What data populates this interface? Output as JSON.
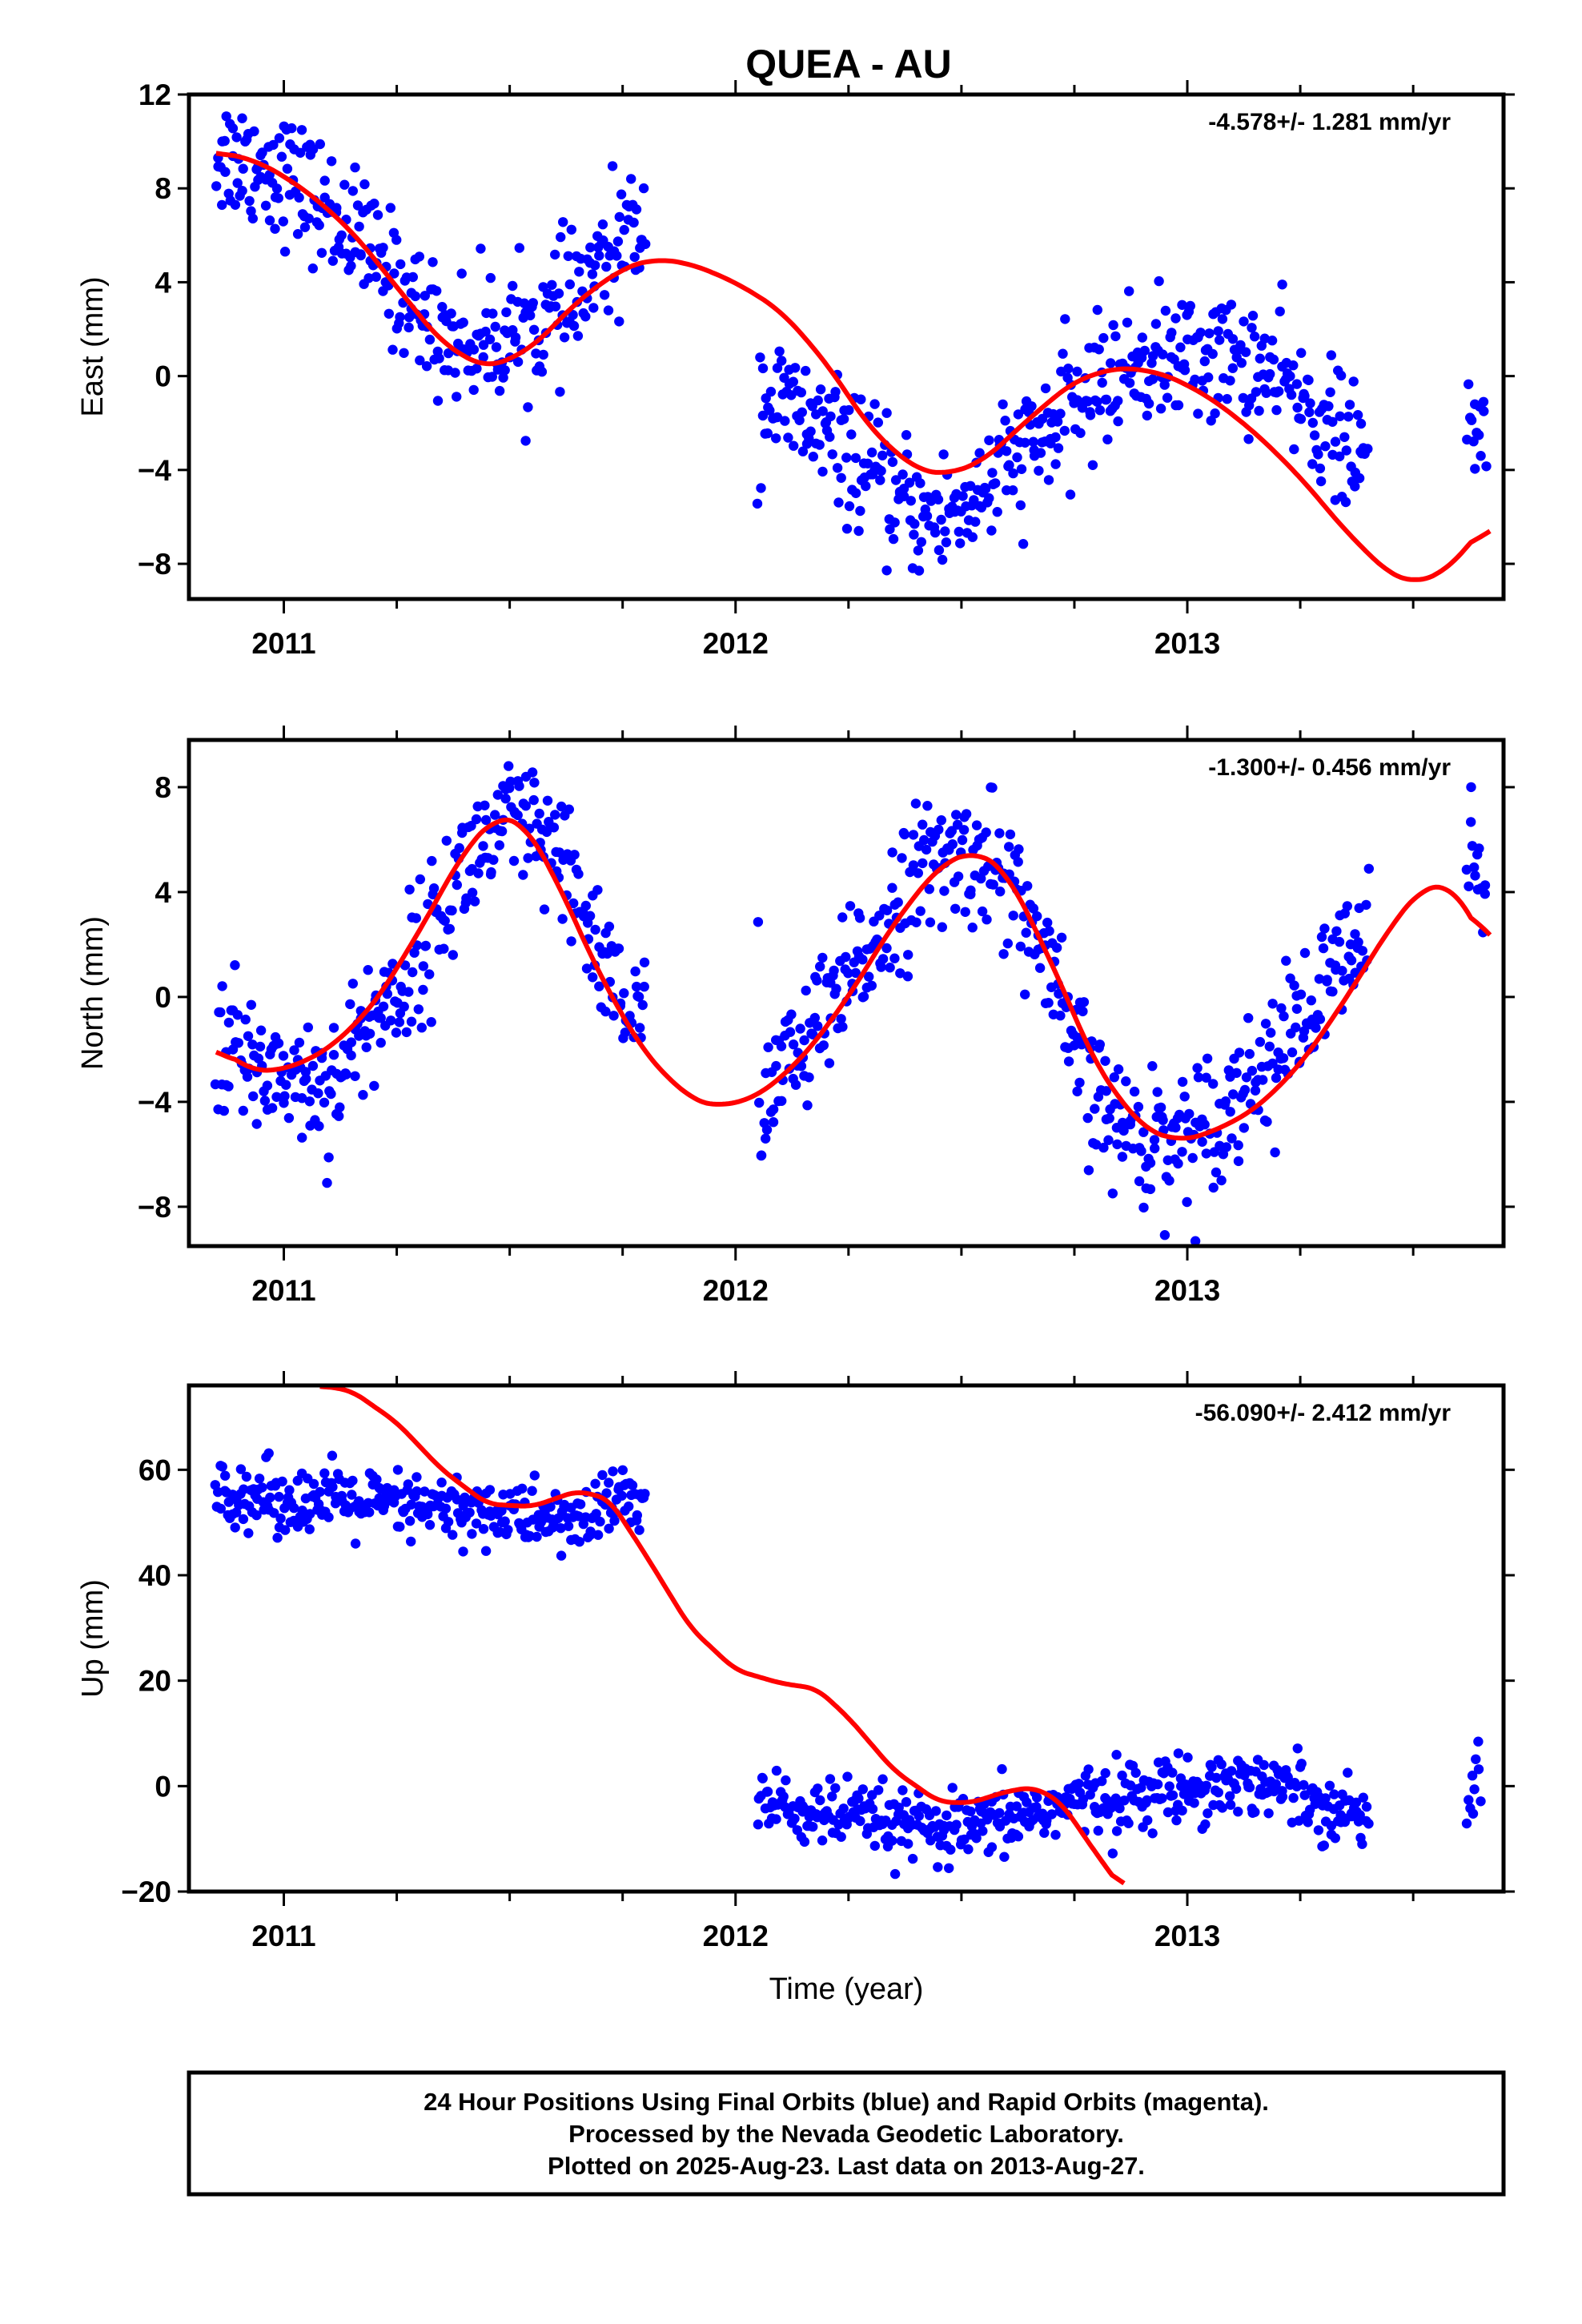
{
  "title": "QUEA - AU",
  "caption": {
    "lines": [
      "24 Hour Positions Using Final Orbits (blue) and Rapid Orbits (magenta).",
      "Processed by the Nevada Geodetic Laboratory.",
      "Plotted on 2025-Aug-23. Last data on 2013-Aug-27."
    ]
  },
  "colors": {
    "points": "#0000ff",
    "model": "#ff0000",
    "frame": "#000000"
  },
  "chart_data": [
    {
      "type": "scatter",
      "ylabel": "East (mm)",
      "xlabel": "",
      "xlim": [
        2010.79,
        2013.7
      ],
      "ylim": [
        -9.5,
        12
      ],
      "xticks": [
        2011,
        2012,
        2013
      ],
      "xtick_labels": [
        "2011",
        "2012",
        "2013"
      ],
      "yticks": [
        -8,
        -4,
        0,
        4,
        8,
        12
      ],
      "ytick_labels": [
        "−8",
        "−4",
        "0",
        "4",
        "8",
        "12"
      ],
      "rate": "-4.578+/- 1.281 mm/yr",
      "series": [
        {
          "kind": "model",
          "x": [
            2010.85,
            2010.95,
            2011.05,
            2011.15,
            2011.25,
            2011.35,
            2011.45,
            2011.55,
            2011.65,
            2011.75,
            2011.82,
            2011.9,
            2012.0,
            2012.1,
            2012.2,
            2012.3,
            2012.4,
            2012.47,
            2012.55,
            2012.65,
            2012.75,
            2012.85,
            2012.95,
            2013.05,
            2013.15,
            2013.25,
            2013.35,
            2013.45,
            2013.5,
            2013.56,
            2013.62,
            2013.67
          ],
          "y": [
            9.6,
            9.1,
            7.9,
            6.2,
            3.8,
            1.4,
            0.3,
            1.2,
            3.2,
            4.6,
            5.0,
            4.8,
            4.0,
            2.8,
            0.6,
            -2.3,
            -4.0,
            -4.2,
            -3.6,
            -1.8,
            -0.2,
            0.4,
            0.1,
            -0.9,
            -2.4,
            -4.3,
            -6.6,
            -8.5,
            -8.8,
            -8.5,
            -7.3,
            -6.1
          ]
        },
        {
          "kind": "observations",
          "segments": [
            {
              "x": [
                2010.85,
                2010.92,
                2011.0,
                2011.05,
                2011.1,
                2011.15,
                2011.2,
                2011.25,
                2011.3,
                2011.35,
                2011.4,
                2011.45,
                2011.5,
                2011.55,
                2011.6,
                2011.65,
                2011.7,
                2011.72,
                2011.75,
                2011.8
              ],
              "y": [
                9.5,
                9.2,
                8.6,
                7.9,
                7.0,
                6.2,
                5.1,
                3.9,
                2.8,
                1.9,
                1.4,
                1.6,
                1.8,
                2.0,
                2.6,
                3.4,
                4.5,
                5.0,
                5.8,
                6.5
              ]
            },
            {
              "x": [
                2012.05,
                2012.1,
                2012.15,
                2012.2,
                2012.25,
                2012.3,
                2012.35,
                2012.4,
                2012.45,
                2012.5,
                2012.55,
                2012.6,
                2012.65,
                2012.7,
                2012.75,
                2012.8,
                2012.85,
                2012.9,
                2012.95,
                2013.0,
                2013.05,
                2013.1,
                2013.15,
                2013.2,
                2013.25,
                2013.3,
                2013.35,
                2013.4
              ],
              "y": [
                -0.8,
                -1.3,
                -1.8,
                -2.5,
                -3.3,
                -4.2,
                -5.1,
                -5.8,
                -6.0,
                -5.6,
                -4.8,
                -3.9,
                -3.1,
                -2.3,
                -1.3,
                -0.4,
                0.2,
                0.6,
                0.7,
                0.8,
                0.9,
                0.8,
                0.5,
                -0.2,
                -1.0,
                -1.9,
                -2.9,
                -3.8
              ]
            },
            {
              "x": [
                2013.62,
                2013.64,
                2013.66
              ],
              "y": [
                -2.4,
                -2.5,
                -2.6
              ]
            }
          ],
          "spread": 1.35
        }
      ]
    },
    {
      "type": "scatter",
      "ylabel": "North (mm)",
      "xlabel": "",
      "xlim": [
        2010.79,
        2013.7
      ],
      "ylim": [
        -9.5,
        9.8
      ],
      "xticks": [
        2011,
        2012,
        2013
      ],
      "xtick_labels": [
        "2011",
        "2012",
        "2013"
      ],
      "yticks": [
        -8,
        -4,
        0,
        4,
        8
      ],
      "ytick_labels": [
        "−8",
        "−4",
        "0",
        "4",
        "8"
      ],
      "rate": "-1.300+/- 0.456 mm/yr",
      "series": [
        {
          "kind": "model",
          "x": [
            2010.85,
            2010.92,
            2011.0,
            2011.1,
            2011.2,
            2011.3,
            2011.4,
            2011.47,
            2011.53,
            2011.6,
            2011.7,
            2011.8,
            2011.9,
            2011.96,
            2012.05,
            2012.15,
            2012.25,
            2012.35,
            2012.45,
            2012.53,
            2012.6,
            2012.7,
            2012.8,
            2012.9,
            2012.98,
            2013.05,
            2013.15,
            2013.25,
            2013.35,
            2013.45,
            2013.52,
            2013.58,
            2013.62,
            2013.67
          ],
          "y": [
            -1.8,
            -2.8,
            -2.8,
            -2.0,
            -0.3,
            2.5,
            5.6,
            6.9,
            6.7,
            4.6,
            0.8,
            -2.2,
            -3.9,
            -4.2,
            -3.8,
            -2.3,
            0.0,
            2.8,
            5.0,
            5.6,
            4.8,
            1.3,
            -2.7,
            -5.0,
            -5.5,
            -5.2,
            -4.3,
            -2.6,
            -0.1,
            2.7,
            4.2,
            4.3,
            3.4,
            1.6
          ]
        },
        {
          "kind": "observations",
          "segments": [
            {
              "x": [
                2010.85,
                2010.92,
                2011.0,
                2011.05,
                2011.1,
                2011.15,
                2011.2,
                2011.25,
                2011.3,
                2011.35,
                2011.4,
                2011.45,
                2011.5,
                2011.55,
                2011.6,
                2011.65,
                2011.7,
                2011.75,
                2011.8
              ],
              "y": [
                -1.5,
                -2.5,
                -2.8,
                -3.2,
                -3.4,
                -2.0,
                -0.8,
                0.2,
                1.6,
                3.2,
                5.0,
                5.9,
                6.5,
                6.3,
                5.2,
                3.7,
                1.8,
                0.0,
                -1.5
              ]
            },
            {
              "x": [
                2012.05,
                2012.1,
                2012.15,
                2012.2,
                2012.25,
                2012.3,
                2012.35,
                2012.4,
                2012.45,
                2012.5,
                2012.55,
                2012.6,
                2012.65,
                2012.7,
                2012.75,
                2012.8,
                2012.85,
                2012.9,
                2012.95,
                2013.0,
                2013.05,
                2013.1,
                2013.15,
                2013.2,
                2013.25,
                2013.3,
                2013.35,
                2013.4
              ],
              "y": [
                -3.5,
                -3.0,
                -2.0,
                -0.8,
                0.4,
                2.0,
                3.5,
                4.6,
                5.1,
                5.3,
                5.5,
                4.5,
                2.9,
                0.4,
                -2.0,
                -3.9,
                -4.9,
                -5.3,
                -5.4,
                -5.2,
                -4.6,
                -3.9,
                -3.0,
                -2.0,
                -1.0,
                0.1,
                1.3,
                2.3
              ]
            },
            {
              "x": [
                2013.62,
                2013.64,
                2013.66
              ],
              "y": [
                6.0,
                4.6,
                3.4
              ]
            }
          ],
          "spread": 1.3
        }
      ]
    },
    {
      "type": "scatter",
      "ylabel": "Up (mm)",
      "xlabel": "Time (year)",
      "xlim": [
        2010.79,
        2013.7
      ],
      "ylim": [
        -20,
        76
      ],
      "xticks": [
        2011,
        2012,
        2013
      ],
      "xtick_labels": [
        "2011",
        "2012",
        "2013"
      ],
      "yticks": [
        -20,
        0,
        20,
        40,
        60
      ],
      "ytick_labels": [
        "−20",
        "0",
        "20",
        "40",
        "60"
      ],
      "rate": "-56.090+/- 2.412 mm/yr",
      "series": [
        {
          "kind": "model",
          "x": [
            2011.08,
            2011.15,
            2011.25,
            2011.35,
            2011.45,
            2011.55,
            2011.65,
            2011.72,
            2011.8,
            2011.9,
            2012.0,
            2012.1,
            2012.18,
            2012.25,
            2012.35,
            2012.45,
            2012.52,
            2012.6,
            2012.66,
            2012.72,
            2012.8,
            2012.86
          ],
          "y": [
            76,
            75,
            69,
            60,
            53.5,
            53,
            56,
            54.5,
            44,
            30,
            22,
            19.5,
            18.5,
            13,
            3,
            -3,
            -3.2,
            -1,
            -0.2,
            -3,
            -13,
            -20
          ]
        },
        {
          "kind": "observations",
          "segments": [
            {
              "x": [
                2010.85,
                2010.95,
                2011.05,
                2011.15,
                2011.25,
                2011.35,
                2011.45,
                2011.55,
                2011.65,
                2011.75,
                2011.8
              ],
              "y": [
                56.5,
                55.0,
                54.0,
                54.0,
                53.0,
                52.5,
                52.0,
                51.0,
                50.0,
                55.0,
                54.0
              ]
            },
            {
              "x": [
                2012.05,
                2012.15,
                2012.25,
                2012.35,
                2012.45,
                2012.55,
                2012.65,
                2012.75,
                2012.85,
                2012.95,
                2013.05,
                2013.15,
                2013.25,
                2013.35,
                2013.4
              ],
              "y": [
                -3.0,
                -5.0,
                -6.0,
                -7.0,
                -9.0,
                -8.0,
                -5.0,
                -3.0,
                -2.0,
                -1.0,
                0.5,
                1.0,
                -1.0,
                -5.0,
                -6.0
              ]
            },
            {
              "x": [
                2013.62,
                2013.65
              ],
              "y": [
                1.0,
                -1.0
              ]
            }
          ],
          "spread": 3.2
        }
      ]
    }
  ]
}
